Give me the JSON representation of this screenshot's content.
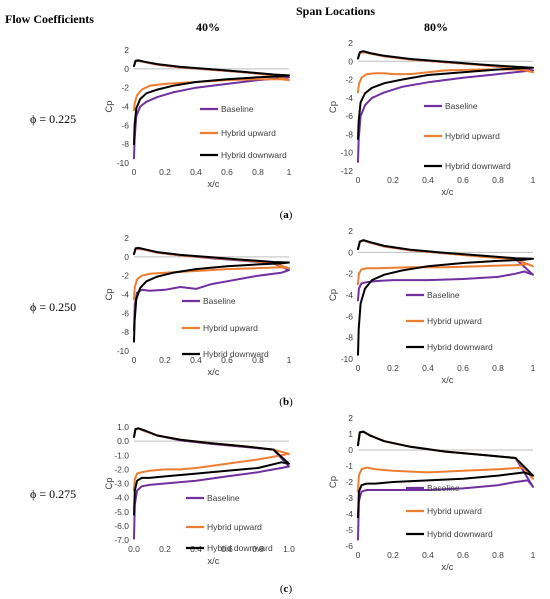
{
  "header": {
    "left": "Flow Coefficients",
    "center": "Span Locations"
  },
  "columns": [
    "40%",
    "80%"
  ],
  "rows": [
    {
      "label": "ϕ = 0.225",
      "caption_letter": "a"
    },
    {
      "label": "ϕ = 0.250",
      "caption_letter": "b"
    },
    {
      "label": "ϕ = 0.275",
      "caption_letter": "c"
    }
  ],
  "colors": {
    "Baseline": "#7030a0",
    "Hybrid upward": "#ed7d31",
    "Hybrid downward": "#000000"
  },
  "chart_data": [
    {
      "type": "line",
      "title": "",
      "xlabel": "x/c",
      "ylabel": "Cp",
      "xlim": [
        0,
        1
      ],
      "ylim": [
        -10,
        2
      ],
      "xticks": [
        "0",
        "0.2",
        "0.4",
        "0.6",
        "0.8",
        "1"
      ],
      "yticks": [
        "-10",
        "-8",
        "-6",
        "-4",
        "-2",
        "0",
        "2"
      ],
      "series": [
        {
          "name": "Baseline",
          "x": [
            0.0,
            0.004,
            0.015,
            0.04,
            0.08,
            0.15,
            0.25,
            0.4,
            0.6,
            0.8,
            0.95,
            1.0,
            0.9,
            0.7,
            0.5,
            0.3,
            0.15,
            0.07,
            0.03,
            0.01,
            0.0
          ],
          "y": [
            -9.5,
            -7.5,
            -5.0,
            -4.0,
            -3.5,
            -3.0,
            -2.5,
            -2.0,
            -1.6,
            -1.2,
            -1.0,
            -0.9,
            -0.65,
            -0.35,
            -0.1,
            0.15,
            0.45,
            0.7,
            0.85,
            0.8,
            0.3
          ]
        },
        {
          "name": "Hybrid upward",
          "x": [
            0.0,
            0.005,
            0.02,
            0.05,
            0.1,
            0.2,
            0.4,
            0.6,
            0.8,
            0.95,
            1.0,
            0.9,
            0.7,
            0.5,
            0.3,
            0.15,
            0.07,
            0.03,
            0.01,
            0.0
          ],
          "y": [
            -4.4,
            -3.6,
            -2.8,
            -2.2,
            -1.8,
            -1.6,
            -1.4,
            -1.2,
            -1.1,
            -1.1,
            -1.2,
            -0.7,
            -0.35,
            -0.1,
            0.15,
            0.45,
            0.7,
            0.85,
            0.8,
            0.3
          ]
        },
        {
          "name": "Hybrid downward",
          "x": [
            0.0,
            0.004,
            0.015,
            0.04,
            0.08,
            0.15,
            0.25,
            0.4,
            0.6,
            0.8,
            0.95,
            1.0,
            0.9,
            0.7,
            0.5,
            0.3,
            0.15,
            0.07,
            0.03,
            0.01,
            0.0
          ],
          "y": [
            -8.0,
            -6.0,
            -4.2,
            -3.2,
            -2.6,
            -2.2,
            -1.8,
            -1.4,
            -1.1,
            -0.9,
            -0.8,
            -0.7,
            -0.6,
            -0.3,
            -0.05,
            0.2,
            0.5,
            0.75,
            0.9,
            0.85,
            0.3
          ]
        }
      ]
    },
    {
      "type": "line",
      "title": "",
      "xlabel": "x/c",
      "ylabel": "Cp",
      "xlim": [
        0,
        1
      ],
      "ylim": [
        -12,
        2
      ],
      "xticks": [
        "0",
        "0.2",
        "0.4",
        "0.6",
        "0.8",
        "1"
      ],
      "yticks": [
        "-12",
        "-10",
        "-8",
        "-6",
        "-4",
        "-2",
        "0",
        "2"
      ],
      "series": [
        {
          "name": "Baseline",
          "x": [
            0.0,
            0.004,
            0.015,
            0.04,
            0.08,
            0.15,
            0.25,
            0.4,
            0.6,
            0.8,
            0.95,
            1.0,
            0.9,
            0.7,
            0.5,
            0.3,
            0.15,
            0.07,
            0.03,
            0.01,
            0.0
          ],
          "y": [
            -11.0,
            -8.5,
            -6.0,
            -4.8,
            -4.0,
            -3.4,
            -2.8,
            -2.3,
            -1.8,
            -1.4,
            -1.1,
            -1.0,
            -0.8,
            -0.4,
            -0.1,
            0.2,
            0.55,
            0.85,
            1.0,
            0.9,
            0.3
          ]
        },
        {
          "name": "Hybrid upward",
          "x": [
            0.0,
            0.005,
            0.02,
            0.05,
            0.1,
            0.15,
            0.2,
            0.3,
            0.5,
            0.7,
            0.9,
            0.97,
            1.0,
            0.9,
            0.7,
            0.5,
            0.3,
            0.15,
            0.07,
            0.03,
            0.01,
            0.0
          ],
          "y": [
            -3.4,
            -2.5,
            -1.8,
            -1.4,
            -1.3,
            -1.3,
            -1.4,
            -1.4,
            -1.0,
            -0.9,
            -0.9,
            -1.0,
            -1.2,
            -0.75,
            -0.4,
            -0.1,
            0.2,
            0.55,
            0.85,
            1.0,
            0.9,
            0.3
          ]
        },
        {
          "name": "Hybrid downward",
          "x": [
            0.0,
            0.004,
            0.015,
            0.04,
            0.08,
            0.15,
            0.25,
            0.4,
            0.6,
            0.8,
            0.95,
            1.0,
            0.9,
            0.7,
            0.5,
            0.3,
            0.15,
            0.07,
            0.03,
            0.01,
            0.0
          ],
          "y": [
            -8.5,
            -6.5,
            -4.5,
            -3.5,
            -2.9,
            -2.4,
            -2.0,
            -1.5,
            -1.2,
            -0.9,
            -0.75,
            -0.7,
            -0.6,
            -0.35,
            -0.05,
            0.25,
            0.6,
            0.9,
            1.1,
            1.0,
            0.3
          ]
        }
      ]
    },
    {
      "type": "line",
      "title": "",
      "xlabel": "x/c",
      "ylabel": "Cp",
      "xlim": [
        0,
        1
      ],
      "ylim": [
        -10,
        2
      ],
      "xticks": [
        "0",
        "0.2",
        "0.4",
        "0.6",
        "0.8",
        "1"
      ],
      "yticks": [
        "-10",
        "-8",
        "-6",
        "-4",
        "-2",
        "0",
        "2"
      ],
      "series": [
        {
          "name": "Baseline",
          "x": [
            0.0,
            0.005,
            0.02,
            0.05,
            0.1,
            0.2,
            0.3,
            0.4,
            0.5,
            0.6,
            0.7,
            0.8,
            0.9,
            0.95,
            1.0,
            0.9,
            0.7,
            0.5,
            0.3,
            0.15,
            0.07,
            0.03,
            0.01,
            0.0
          ],
          "y": [
            -7.8,
            -5.0,
            -3.8,
            -3.5,
            -3.6,
            -3.5,
            -3.2,
            -3.4,
            -2.9,
            -2.6,
            -2.3,
            -2.0,
            -1.8,
            -1.7,
            -1.4,
            -0.7,
            -0.4,
            -0.15,
            0.15,
            0.45,
            0.75,
            0.85,
            0.8,
            0.3
          ]
        },
        {
          "name": "Hybrid upward",
          "x": [
            0.0,
            0.005,
            0.02,
            0.05,
            0.1,
            0.2,
            0.4,
            0.6,
            0.8,
            0.95,
            1.0,
            0.9,
            0.7,
            0.5,
            0.3,
            0.15,
            0.07,
            0.03,
            0.01,
            0.0
          ],
          "y": [
            -4.5,
            -3.2,
            -2.4,
            -2.0,
            -1.8,
            -1.7,
            -1.5,
            -1.3,
            -1.2,
            -1.1,
            -1.2,
            -0.7,
            -0.35,
            -0.1,
            0.15,
            0.45,
            0.75,
            0.85,
            0.8,
            0.3
          ]
        },
        {
          "name": "Hybrid downward",
          "x": [
            0.0,
            0.004,
            0.015,
            0.04,
            0.08,
            0.15,
            0.25,
            0.4,
            0.6,
            0.8,
            0.95,
            1.0,
            0.9,
            0.7,
            0.5,
            0.3,
            0.15,
            0.07,
            0.03,
            0.01,
            0.0
          ],
          "y": [
            -9.0,
            -6.8,
            -4.5,
            -3.3,
            -2.6,
            -2.1,
            -1.7,
            -1.3,
            -1.0,
            -0.8,
            -0.7,
            -0.6,
            -0.55,
            -0.3,
            -0.05,
            0.2,
            0.5,
            0.8,
            0.95,
            0.9,
            0.3
          ]
        }
      ]
    },
    {
      "type": "line",
      "title": "",
      "xlabel": "x/c",
      "ylabel": "Cp",
      "xlim": [
        0,
        1
      ],
      "ylim": [
        -10,
        2
      ],
      "xticks": [
        "0",
        "0.2",
        "0.4",
        "0.6",
        "0.8",
        "1"
      ],
      "yticks": [
        "-10",
        "-8",
        "-6",
        "-4",
        "-2",
        "0",
        "2"
      ],
      "series": [
        {
          "name": "Baseline",
          "x": [
            0.0,
            0.005,
            0.02,
            0.05,
            0.1,
            0.2,
            0.4,
            0.6,
            0.8,
            0.9,
            0.95,
            1.0,
            0.9,
            0.7,
            0.5,
            0.3,
            0.15,
            0.07,
            0.03,
            0.01,
            0.0
          ],
          "y": [
            -4.5,
            -3.4,
            -2.9,
            -2.8,
            -2.7,
            -2.6,
            -2.6,
            -2.5,
            -2.3,
            -2.0,
            -1.8,
            -2.1,
            -0.6,
            -0.35,
            -0.1,
            0.2,
            0.55,
            0.9,
            1.1,
            1.0,
            0.3
          ]
        },
        {
          "name": "Hybrid upward",
          "x": [
            0.0,
            0.005,
            0.02,
            0.05,
            0.1,
            0.3,
            0.5,
            0.7,
            0.9,
            0.97,
            1.0,
            0.9,
            0.7,
            0.5,
            0.3,
            0.15,
            0.07,
            0.03,
            0.01,
            0.0
          ],
          "y": [
            -3.0,
            -2.0,
            -1.6,
            -1.5,
            -1.5,
            -1.4,
            -1.4,
            -1.3,
            -1.2,
            -1.1,
            -1.3,
            -0.65,
            -0.4,
            -0.1,
            0.2,
            0.55,
            0.9,
            1.1,
            1.0,
            0.3
          ]
        },
        {
          "name": "Hybrid downward",
          "x": [
            0.0,
            0.004,
            0.015,
            0.04,
            0.08,
            0.15,
            0.25,
            0.4,
            0.6,
            0.8,
            0.95,
            1.0,
            0.9,
            0.7,
            0.5,
            0.3,
            0.15,
            0.07,
            0.03,
            0.01,
            0.0
          ],
          "y": [
            -9.6,
            -7.2,
            -4.8,
            -3.4,
            -2.6,
            -2.1,
            -1.7,
            -1.3,
            -1.0,
            -0.8,
            -0.7,
            -0.6,
            -0.55,
            -0.3,
            -0.05,
            0.25,
            0.6,
            0.95,
            1.15,
            1.0,
            0.3
          ]
        }
      ]
    },
    {
      "type": "line",
      "title": "",
      "xlabel": "x/c",
      "ylabel": "Cp",
      "xlim": [
        0,
        1
      ],
      "ylim": [
        -7,
        1
      ],
      "xticks": [
        "0.0",
        "0.2",
        "0.4",
        "0.6",
        "0.8",
        "1.0"
      ],
      "yticks": [
        "-7.0",
        "-6.0",
        "-5.0",
        "-4.0",
        "-3.0",
        "-2.0",
        "-1.0",
        "0.0",
        "1.0"
      ],
      "series": [
        {
          "name": "Baseline",
          "x": [
            0.0,
            0.005,
            0.02,
            0.05,
            0.1,
            0.2,
            0.3,
            0.4,
            0.6,
            0.8,
            0.9,
            0.95,
            1.0,
            0.9,
            0.7,
            0.5,
            0.3,
            0.15,
            0.07,
            0.03,
            0.01,
            0.0
          ],
          "y": [
            -6.9,
            -4.5,
            -3.5,
            -3.2,
            -3.1,
            -3.0,
            -2.9,
            -2.8,
            -2.5,
            -2.2,
            -2.0,
            -1.9,
            -1.8,
            -0.6,
            -0.4,
            -0.2,
            0.05,
            0.4,
            0.7,
            0.9,
            0.85,
            0.3
          ]
        },
        {
          "name": "Hybrid upward",
          "x": [
            0.0,
            0.005,
            0.02,
            0.05,
            0.1,
            0.2,
            0.3,
            0.4,
            0.6,
            0.8,
            0.95,
            1.0,
            0.9,
            0.7,
            0.5,
            0.3,
            0.15,
            0.07,
            0.03,
            0.01,
            0.0
          ],
          "y": [
            -3.5,
            -2.7,
            -2.3,
            -2.2,
            -2.1,
            -2.0,
            -2.0,
            -1.9,
            -1.6,
            -1.3,
            -1.0,
            -0.9,
            -0.6,
            -0.35,
            -0.15,
            0.1,
            0.4,
            0.7,
            0.9,
            0.85,
            0.3
          ]
        },
        {
          "name": "Hybrid downward",
          "x": [
            0.0,
            0.005,
            0.02,
            0.05,
            0.1,
            0.2,
            0.3,
            0.4,
            0.6,
            0.8,
            0.95,
            1.0,
            0.9,
            0.7,
            0.5,
            0.3,
            0.15,
            0.07,
            0.03,
            0.01,
            0.0
          ],
          "y": [
            -5.2,
            -3.5,
            -2.8,
            -2.6,
            -2.6,
            -2.5,
            -2.4,
            -2.3,
            -2.1,
            -1.9,
            -1.5,
            -1.6,
            -0.6,
            -0.35,
            -0.15,
            0.1,
            0.4,
            0.75,
            0.9,
            0.85,
            0.3
          ]
        }
      ]
    },
    {
      "type": "line",
      "title": "",
      "xlabel": "x/c",
      "ylabel": "Cp",
      "xlim": [
        0,
        1
      ],
      "ylim": [
        -6,
        2
      ],
      "xticks": [
        "0",
        "0.2",
        "0.4",
        "0.6",
        "0.8",
        "1"
      ],
      "yticks": [
        "-6",
        "-5",
        "-4",
        "-3",
        "-2",
        "-1",
        "0",
        "1",
        "2"
      ],
      "series": [
        {
          "name": "Baseline",
          "x": [
            0.0,
            0.005,
            0.02,
            0.05,
            0.1,
            0.2,
            0.4,
            0.6,
            0.8,
            0.9,
            0.97,
            1.0,
            0.9,
            0.7,
            0.5,
            0.3,
            0.15,
            0.07,
            0.03,
            0.01,
            0.0
          ],
          "y": [
            -5.6,
            -3.2,
            -2.6,
            -2.5,
            -2.5,
            -2.5,
            -2.5,
            -2.4,
            -2.2,
            -2.0,
            -1.9,
            -2.3,
            -0.5,
            -0.3,
            -0.1,
            0.2,
            0.55,
            0.9,
            1.15,
            1.1,
            0.3
          ]
        },
        {
          "name": "Hybrid upward",
          "x": [
            0.0,
            0.005,
            0.02,
            0.05,
            0.1,
            0.2,
            0.4,
            0.6,
            0.8,
            0.95,
            1.0,
            0.9,
            0.7,
            0.5,
            0.3,
            0.15,
            0.07,
            0.03,
            0.01,
            0.0
          ],
          "y": [
            -2.6,
            -1.6,
            -1.2,
            -1.1,
            -1.2,
            -1.3,
            -1.4,
            -1.3,
            -1.2,
            -1.1,
            -1.8,
            -0.5,
            -0.3,
            -0.1,
            0.2,
            0.55,
            0.9,
            1.15,
            1.1,
            0.3
          ]
        },
        {
          "name": "Hybrid downward",
          "x": [
            0.0,
            0.005,
            0.02,
            0.05,
            0.1,
            0.2,
            0.4,
            0.6,
            0.8,
            0.95,
            1.0,
            0.9,
            0.7,
            0.5,
            0.3,
            0.15,
            0.07,
            0.03,
            0.01,
            0.0
          ],
          "y": [
            -4.2,
            -2.6,
            -2.2,
            -2.1,
            -2.1,
            -2.0,
            -1.9,
            -1.8,
            -1.6,
            -1.4,
            -1.6,
            -0.5,
            -0.3,
            -0.1,
            0.2,
            0.55,
            0.9,
            1.15,
            1.1,
            0.3
          ]
        }
      ]
    }
  ]
}
